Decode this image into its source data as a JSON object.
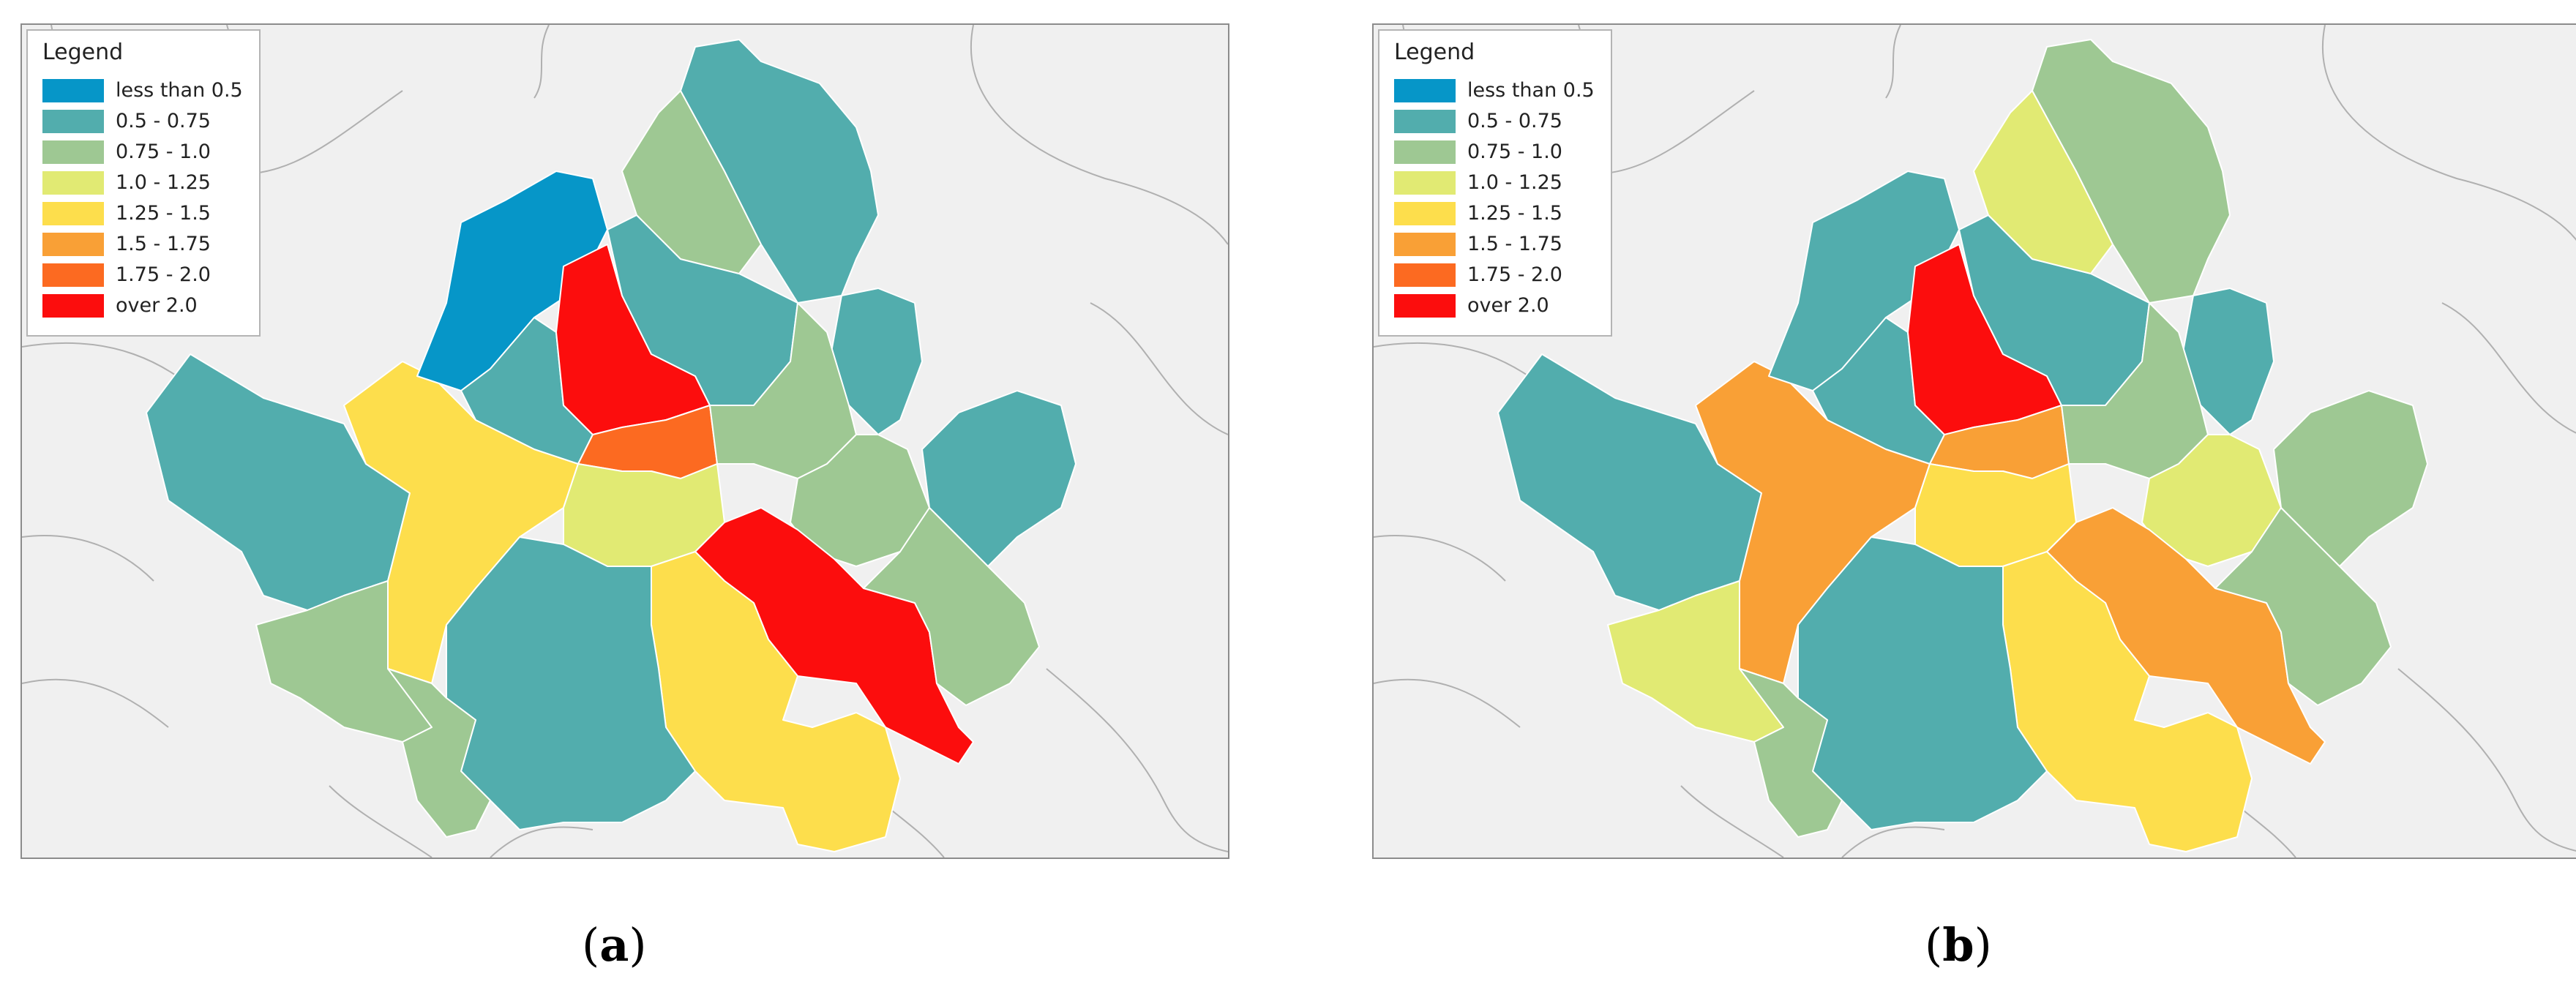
{
  "legend": {
    "title": "Legend",
    "items": [
      {
        "label": "less than 0.5",
        "color": "#0696c8"
      },
      {
        "label": "0.5 - 0.75",
        "color": "#52adad"
      },
      {
        "label": "0.75 - 1.0",
        "color": "#9ec893"
      },
      {
        "label": "1.0 - 1.25",
        "color": "#e1ea73"
      },
      {
        "label": "1.25 - 1.5",
        "color": "#fdde4c"
      },
      {
        "label": "1.5 - 1.75",
        "color": "#f9a036"
      },
      {
        "label": "1.75 - 2.0",
        "color": "#fc6a21"
      },
      {
        "label": "over 2.0",
        "color": "#fc0d0d"
      }
    ]
  },
  "panels": [
    {
      "caption_open": "(",
      "caption_letter": "a",
      "caption_close": ")"
    },
    {
      "caption_open": "(",
      "caption_letter": "b",
      "caption_close": ")"
    }
  ],
  "map": {
    "background_color": "#f0f0f0",
    "boundary_color": "#ffffff",
    "outer_boundary_color": "#aaaaaa"
  }
}
